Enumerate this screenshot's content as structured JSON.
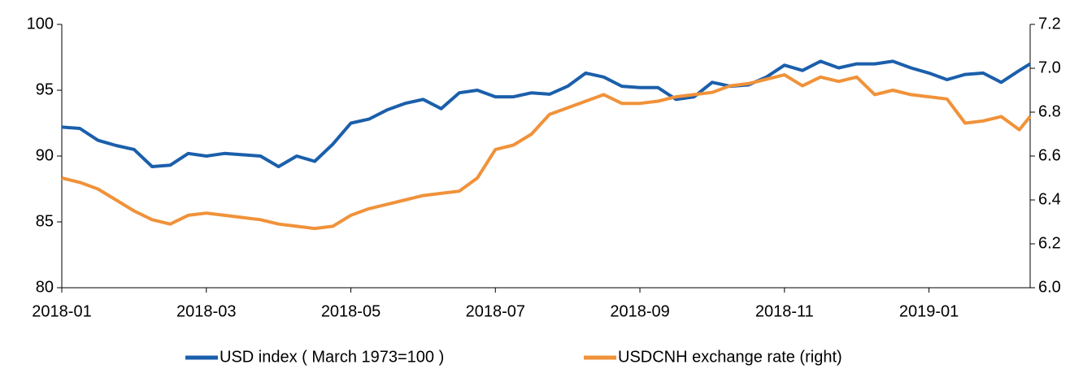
{
  "chart_data": {
    "type": "line",
    "x": [
      0,
      0.25,
      0.5,
      0.75,
      1,
      1.25,
      1.5,
      1.75,
      2,
      2.25,
      2.5,
      2.75,
      3,
      3.25,
      3.5,
      3.75,
      4,
      4.25,
      4.5,
      4.75,
      5,
      5.25,
      5.5,
      5.75,
      6,
      6.25,
      6.5,
      6.75,
      7,
      7.25,
      7.5,
      7.75,
      8,
      8.25,
      8.5,
      8.75,
      9,
      9.25,
      9.5,
      9.75,
      10,
      10.25,
      10.5,
      10.75,
      11,
      11.25,
      11.5,
      11.75,
      12,
      12.25,
      12.5,
      12.75,
      13,
      13.25,
      13.4
    ],
    "xlim": [
      0,
      13.4
    ],
    "xticks": [
      {
        "value": 0,
        "label": "2018-01"
      },
      {
        "value": 2,
        "label": "2018-03"
      },
      {
        "value": 4,
        "label": "2018-05"
      },
      {
        "value": 6,
        "label": "2018-07"
      },
      {
        "value": 8,
        "label": "2018-09"
      },
      {
        "value": 10,
        "label": "2018-11"
      },
      {
        "value": 12,
        "label": "2019-01"
      }
    ],
    "ylim": [
      80,
      100
    ],
    "yticks": [
      80,
      85,
      90,
      95,
      100
    ],
    "y2lim": [
      6,
      7.2
    ],
    "y2ticks": [
      {
        "value": 6,
        "label": "6.0"
      },
      6.2,
      6.4,
      6.6,
      6.8,
      {
        "value": 7,
        "label": "7.0"
      },
      7.2
    ],
    "legend": "bottom",
    "series": [
      {
        "name": "USD index ( March 1973=100 )",
        "color": "#1b5fab",
        "values": [
          92.2,
          92.1,
          91.2,
          90.8,
          90.5,
          89.2,
          89.3,
          90.2,
          90,
          90.2,
          90.1,
          90,
          89.2,
          90,
          89.6,
          90.9,
          92.5,
          92.8,
          93.5,
          94,
          94.3,
          93.6,
          94.8,
          95,
          94.5,
          94.5,
          94.8,
          94.7,
          95.3,
          96.3,
          96,
          95.3,
          95.2,
          95.2,
          94.3,
          94.5,
          95.6,
          95.3,
          95.4,
          96,
          96.9,
          96.5,
          97.2,
          96.7,
          97,
          97,
          97.2,
          96.7,
          96.3,
          95.8,
          96.2,
          96.3,
          95.6,
          96.5,
          97
        ]
      },
      {
        "name": "USDCNH exchange rate (right)",
        "color": "#f0923a",
        "axis": "y2",
        "values": [
          6.5,
          6.48,
          6.45,
          6.4,
          6.35,
          6.31,
          6.29,
          6.33,
          6.34,
          6.33,
          6.32,
          6.31,
          6.29,
          6.28,
          6.27,
          6.28,
          6.33,
          6.36,
          6.38,
          6.4,
          6.42,
          6.43,
          6.44,
          6.5,
          6.63,
          6.65,
          6.7,
          6.79,
          6.82,
          6.85,
          6.88,
          6.84,
          6.84,
          6.85,
          6.87,
          6.88,
          6.89,
          6.92,
          6.93,
          6.95,
          6.97,
          6.92,
          6.96,
          6.94,
          6.96,
          6.88,
          6.9,
          6.88,
          6.87,
          6.86,
          6.75,
          6.76,
          6.78,
          6.72,
          6.78
        ]
      }
    ]
  }
}
